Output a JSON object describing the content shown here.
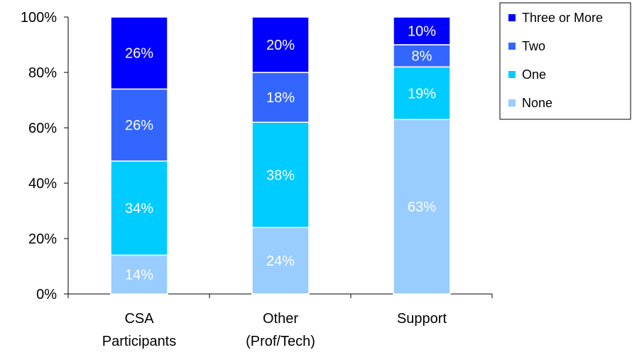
{
  "chart_data": {
    "type": "bar",
    "stacked": true,
    "percent": true,
    "categories": [
      [
        "CSA",
        "Participants"
      ],
      [
        "Other",
        "(Prof/Tech)"
      ],
      [
        "Support"
      ]
    ],
    "series": [
      {
        "name": "None",
        "values": [
          14,
          24,
          63
        ],
        "labels": [
          "14%",
          "24%",
          "63%"
        ],
        "color": "#99ccff"
      },
      {
        "name": "One",
        "values": [
          34,
          38,
          19
        ],
        "labels": [
          "34%",
          "38%",
          "19%"
        ],
        "color": "#00ccff"
      },
      {
        "name": "Two",
        "values": [
          26,
          18,
          8
        ],
        "labels": [
          "26%",
          "18%",
          "8%"
        ],
        "color": "#3366ff"
      },
      {
        "name": "Three or More",
        "values": [
          26,
          20,
          10
        ],
        "labels": [
          "26%",
          "20%",
          "10%"
        ],
        "color": "#0000ff"
      }
    ],
    "y_ticks": [
      "0%",
      "20%",
      "40%",
      "60%",
      "80%",
      "100%"
    ],
    "ylim": [
      0,
      100
    ],
    "grid": false,
    "legend_position": "top-right",
    "legend_order": [
      "Three or More",
      "Two",
      "One",
      "None"
    ]
  }
}
